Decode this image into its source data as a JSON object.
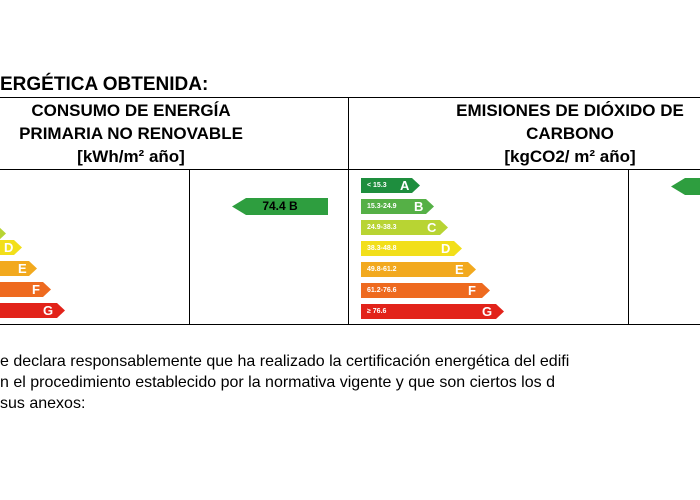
{
  "section_title": "ERGÉTICA OBTENIDA:",
  "consumo": {
    "title_line1": "CONSUMO DE ENERGÍA",
    "title_line2": "PRIMARIA NO RENOVABLE",
    "unit": "[kWh/m² año]",
    "scale": [
      {
        "letter": "D",
        "color": "#f2df1a"
      },
      {
        "letter": "E",
        "color": "#f2a91e"
      },
      {
        "letter": "F",
        "color": "#ee6a1f"
      },
      {
        "letter": "G",
        "color": "#e2231a"
      }
    ],
    "result": "74.4 B",
    "result_color": "#2e9e3f"
  },
  "emisiones": {
    "title_line1": "EMISIONES DE DIÓXIDO DE",
    "title_line2": "CARBONO",
    "unit": "[kgCO2/ m² año]",
    "scale": [
      {
        "range": "< 15.3",
        "letter": "A",
        "color": "#1e8e3e"
      },
      {
        "range": "15.3-24.9",
        "letter": "B",
        "color": "#55b046"
      },
      {
        "range": "24.9-38.3",
        "letter": "C",
        "color": "#b8d433"
      },
      {
        "range": "38.3-48.8",
        "letter": "D",
        "color": "#f2df1a"
      },
      {
        "range": "49.8-61.2",
        "letter": "E",
        "color": "#f2a91e"
      },
      {
        "range": "61.2-76.6",
        "letter": "F",
        "color": "#ee6a1f"
      },
      {
        "range": "≥ 76.6",
        "letter": "G",
        "color": "#e2231a"
      }
    ],
    "result_color": "#2e9e3f"
  },
  "declaration": {
    "line1": "e declara responsablemente que ha realizado la certificación energética del edifi",
    "line2": "n el procedimiento establecido por la normativa vigente y que son ciertos los d",
    "line3": "sus anexos:"
  }
}
